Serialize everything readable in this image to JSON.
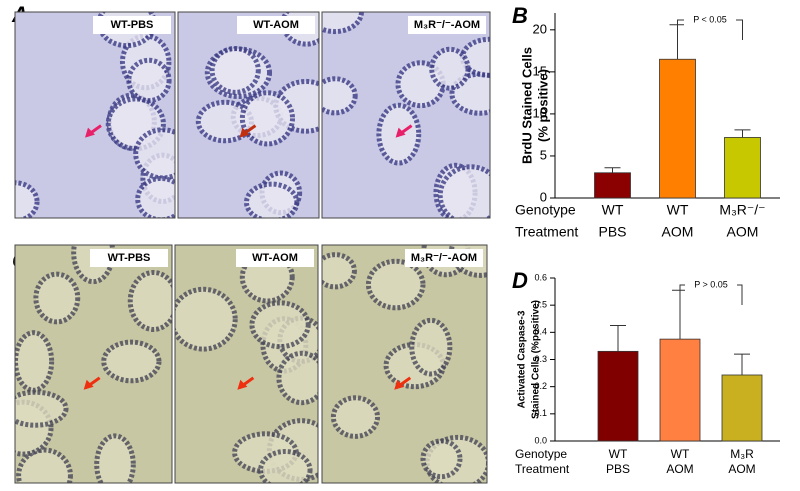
{
  "panels": [
    {
      "letter": "A",
      "images": [
        "WT-PBS",
        "WT-AOM",
        "M₃R⁻/⁻-AOM"
      ]
    },
    {
      "letter": "C",
      "images": [
        "WT-PBS",
        "WT-AOM",
        "M₃R⁻/⁻-AOM"
      ]
    }
  ],
  "chart_data": [
    {
      "type": "bar",
      "letter": "B",
      "ylabel": [
        "BrdU Stained Cells",
        "(% positive)"
      ],
      "row_labels": [
        "Genotype",
        "Treatment"
      ],
      "categories": [
        "WT",
        "WT",
        "M₃R⁻/⁻"
      ],
      "treatments": [
        "PBS",
        "AOM",
        "AOM"
      ],
      "values": [
        3.0,
        16.5,
        7.2
      ],
      "errors": [
        0.6,
        4.1,
        0.9
      ],
      "colors": [
        "#8b0000",
        "#ff8000",
        "#c8c800"
      ],
      "ylim": [
        0,
        22
      ],
      "yticks": [
        0,
        5,
        10,
        15,
        20
      ],
      "annotation": "P < 0.05"
    },
    {
      "type": "bar",
      "letter": "D",
      "ylabel": [
        "Activated Caspase-3",
        "Stained Cells (%positive)"
      ],
      "row_labels": [
        "Genotype",
        "Treatment"
      ],
      "categories": [
        "WT",
        "WT",
        "M₃R"
      ],
      "treatments": [
        "PBS",
        "AOM",
        "AOM"
      ],
      "values": [
        0.33,
        0.375,
        0.243
      ],
      "errors": [
        0.095,
        0.18,
        0.077
      ],
      "colors": [
        "#800000",
        "#ff8040",
        "#c8b020"
      ],
      "ylim": [
        0,
        0.6
      ],
      "yticks": [
        {
          "value": 0,
          "label": "0.0"
        },
        0.1,
        0.2,
        0.3,
        0.4,
        0.5,
        0.6
      ],
      "annotation": "P > 0.05"
    }
  ]
}
